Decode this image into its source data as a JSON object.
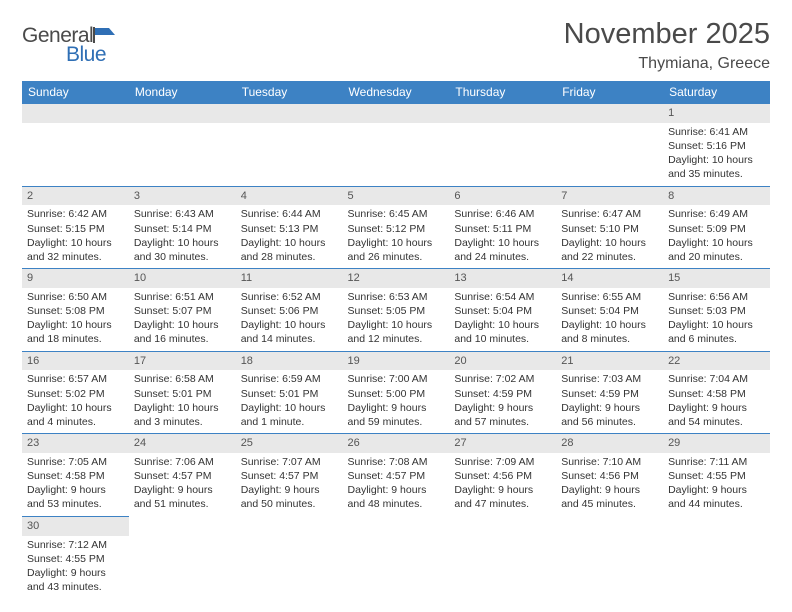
{
  "logo": {
    "word1": "General",
    "word2": "Blue"
  },
  "title": "November 2025",
  "subtitle": "Thymiana, Greece",
  "colors": {
    "header_bg": "#3d82c4",
    "header_text": "#ffffff",
    "daynum_bg": "#e8e8e8",
    "border": "#3d82c4",
    "text": "#333333",
    "title_text": "#4a4a4a",
    "logo_blue": "#2f6fb5"
  },
  "weekdays": [
    "Sunday",
    "Monday",
    "Tuesday",
    "Wednesday",
    "Thursday",
    "Friday",
    "Saturday"
  ],
  "weeks": [
    [
      null,
      null,
      null,
      null,
      null,
      null,
      {
        "n": "1",
        "sr": "Sunrise: 6:41 AM",
        "ss": "Sunset: 5:16 PM",
        "dl1": "Daylight: 10 hours",
        "dl2": "and 35 minutes."
      }
    ],
    [
      {
        "n": "2",
        "sr": "Sunrise: 6:42 AM",
        "ss": "Sunset: 5:15 PM",
        "dl1": "Daylight: 10 hours",
        "dl2": "and 32 minutes."
      },
      {
        "n": "3",
        "sr": "Sunrise: 6:43 AM",
        "ss": "Sunset: 5:14 PM",
        "dl1": "Daylight: 10 hours",
        "dl2": "and 30 minutes."
      },
      {
        "n": "4",
        "sr": "Sunrise: 6:44 AM",
        "ss": "Sunset: 5:13 PM",
        "dl1": "Daylight: 10 hours",
        "dl2": "and 28 minutes."
      },
      {
        "n": "5",
        "sr": "Sunrise: 6:45 AM",
        "ss": "Sunset: 5:12 PM",
        "dl1": "Daylight: 10 hours",
        "dl2": "and 26 minutes."
      },
      {
        "n": "6",
        "sr": "Sunrise: 6:46 AM",
        "ss": "Sunset: 5:11 PM",
        "dl1": "Daylight: 10 hours",
        "dl2": "and 24 minutes."
      },
      {
        "n": "7",
        "sr": "Sunrise: 6:47 AM",
        "ss": "Sunset: 5:10 PM",
        "dl1": "Daylight: 10 hours",
        "dl2": "and 22 minutes."
      },
      {
        "n": "8",
        "sr": "Sunrise: 6:49 AM",
        "ss": "Sunset: 5:09 PM",
        "dl1": "Daylight: 10 hours",
        "dl2": "and 20 minutes."
      }
    ],
    [
      {
        "n": "9",
        "sr": "Sunrise: 6:50 AM",
        "ss": "Sunset: 5:08 PM",
        "dl1": "Daylight: 10 hours",
        "dl2": "and 18 minutes."
      },
      {
        "n": "10",
        "sr": "Sunrise: 6:51 AM",
        "ss": "Sunset: 5:07 PM",
        "dl1": "Daylight: 10 hours",
        "dl2": "and 16 minutes."
      },
      {
        "n": "11",
        "sr": "Sunrise: 6:52 AM",
        "ss": "Sunset: 5:06 PM",
        "dl1": "Daylight: 10 hours",
        "dl2": "and 14 minutes."
      },
      {
        "n": "12",
        "sr": "Sunrise: 6:53 AM",
        "ss": "Sunset: 5:05 PM",
        "dl1": "Daylight: 10 hours",
        "dl2": "and 12 minutes."
      },
      {
        "n": "13",
        "sr": "Sunrise: 6:54 AM",
        "ss": "Sunset: 5:04 PM",
        "dl1": "Daylight: 10 hours",
        "dl2": "and 10 minutes."
      },
      {
        "n": "14",
        "sr": "Sunrise: 6:55 AM",
        "ss": "Sunset: 5:04 PM",
        "dl1": "Daylight: 10 hours",
        "dl2": "and 8 minutes."
      },
      {
        "n": "15",
        "sr": "Sunrise: 6:56 AM",
        "ss": "Sunset: 5:03 PM",
        "dl1": "Daylight: 10 hours",
        "dl2": "and 6 minutes."
      }
    ],
    [
      {
        "n": "16",
        "sr": "Sunrise: 6:57 AM",
        "ss": "Sunset: 5:02 PM",
        "dl1": "Daylight: 10 hours",
        "dl2": "and 4 minutes."
      },
      {
        "n": "17",
        "sr": "Sunrise: 6:58 AM",
        "ss": "Sunset: 5:01 PM",
        "dl1": "Daylight: 10 hours",
        "dl2": "and 3 minutes."
      },
      {
        "n": "18",
        "sr": "Sunrise: 6:59 AM",
        "ss": "Sunset: 5:01 PM",
        "dl1": "Daylight: 10 hours",
        "dl2": "and 1 minute."
      },
      {
        "n": "19",
        "sr": "Sunrise: 7:00 AM",
        "ss": "Sunset: 5:00 PM",
        "dl1": "Daylight: 9 hours",
        "dl2": "and 59 minutes."
      },
      {
        "n": "20",
        "sr": "Sunrise: 7:02 AM",
        "ss": "Sunset: 4:59 PM",
        "dl1": "Daylight: 9 hours",
        "dl2": "and 57 minutes."
      },
      {
        "n": "21",
        "sr": "Sunrise: 7:03 AM",
        "ss": "Sunset: 4:59 PM",
        "dl1": "Daylight: 9 hours",
        "dl2": "and 56 minutes."
      },
      {
        "n": "22",
        "sr": "Sunrise: 7:04 AM",
        "ss": "Sunset: 4:58 PM",
        "dl1": "Daylight: 9 hours",
        "dl2": "and 54 minutes."
      }
    ],
    [
      {
        "n": "23",
        "sr": "Sunrise: 7:05 AM",
        "ss": "Sunset: 4:58 PM",
        "dl1": "Daylight: 9 hours",
        "dl2": "and 53 minutes."
      },
      {
        "n": "24",
        "sr": "Sunrise: 7:06 AM",
        "ss": "Sunset: 4:57 PM",
        "dl1": "Daylight: 9 hours",
        "dl2": "and 51 minutes."
      },
      {
        "n": "25",
        "sr": "Sunrise: 7:07 AM",
        "ss": "Sunset: 4:57 PM",
        "dl1": "Daylight: 9 hours",
        "dl2": "and 50 minutes."
      },
      {
        "n": "26",
        "sr": "Sunrise: 7:08 AM",
        "ss": "Sunset: 4:57 PM",
        "dl1": "Daylight: 9 hours",
        "dl2": "and 48 minutes."
      },
      {
        "n": "27",
        "sr": "Sunrise: 7:09 AM",
        "ss": "Sunset: 4:56 PM",
        "dl1": "Daylight: 9 hours",
        "dl2": "and 47 minutes."
      },
      {
        "n": "28",
        "sr": "Sunrise: 7:10 AM",
        "ss": "Sunset: 4:56 PM",
        "dl1": "Daylight: 9 hours",
        "dl2": "and 45 minutes."
      },
      {
        "n": "29",
        "sr": "Sunrise: 7:11 AM",
        "ss": "Sunset: 4:55 PM",
        "dl1": "Daylight: 9 hours",
        "dl2": "and 44 minutes."
      }
    ],
    [
      {
        "n": "30",
        "sr": "Sunrise: 7:12 AM",
        "ss": "Sunset: 4:55 PM",
        "dl1": "Daylight: 9 hours",
        "dl2": "and 43 minutes."
      },
      null,
      null,
      null,
      null,
      null,
      null
    ]
  ]
}
